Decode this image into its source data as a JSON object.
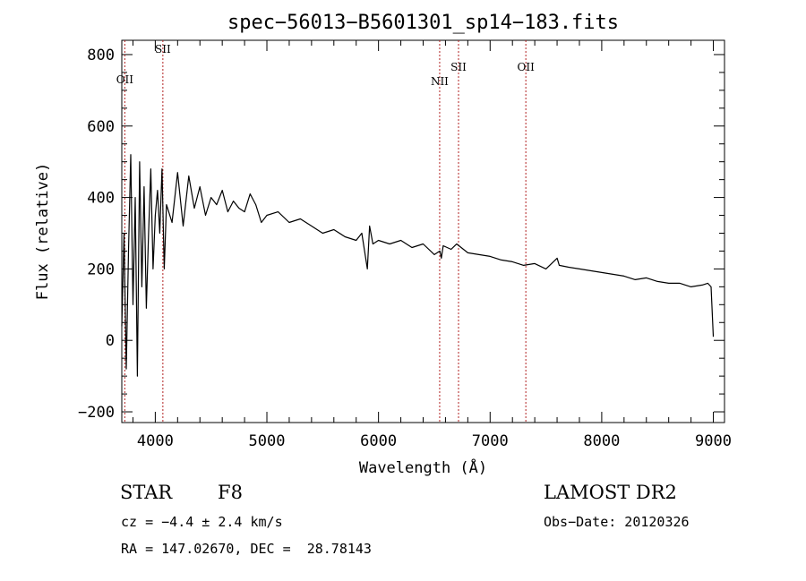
{
  "chart_data": {
    "type": "line",
    "title": "spec−56013−B5601301_sp14−183.fits",
    "xlabel": "Wavelength (Å)",
    "ylabel": "Flux (relative)",
    "xlim": [
      3700,
      9100
    ],
    "ylim": [
      -230,
      840
    ],
    "x_ticks": [
      4000,
      5000,
      6000,
      7000,
      8000,
      9000
    ],
    "y_ticks": [
      -200,
      0,
      200,
      400,
      600,
      800
    ],
    "y_tick_labels": [
      "−200",
      "0",
      "200",
      "400",
      "600",
      "800"
    ],
    "grid": false,
    "series": [
      {
        "x": [
          3700,
          3720,
          3740,
          3760,
          3780,
          3800,
          3820,
          3840,
          3860,
          3880,
          3900,
          3920,
          3940,
          3960,
          3980,
          4000,
          4020,
          4040,
          4060,
          4080,
          4100,
          4150,
          4200,
          4250,
          4300,
          4350,
          4400,
          4450,
          4500,
          4550,
          4600,
          4650,
          4700,
          4750,
          4800,
          4850,
          4900,
          4950,
          5000,
          5100,
          5200,
          5300,
          5400,
          5500,
          5600,
          5700,
          5800,
          5850,
          5900,
          5920,
          5950,
          6000,
          6100,
          6200,
          6300,
          6400,
          6500,
          6550,
          6563,
          6580,
          6650,
          6700,
          6800,
          6900,
          7000,
          7100,
          7200,
          7300,
          7400,
          7500,
          7600,
          7620,
          7700,
          7800,
          7900,
          8000,
          8100,
          8200,
          8300,
          8400,
          8500,
          8600,
          8700,
          8800,
          8900,
          8950,
          8980,
          9000
        ],
        "y": [
          40,
          300,
          -80,
          250,
          520,
          100,
          400,
          -100,
          500,
          150,
          430,
          90,
          300,
          480,
          200,
          350,
          420,
          300,
          480,
          200,
          380,
          330,
          470,
          320,
          460,
          370,
          430,
          350,
          400,
          380,
          420,
          360,
          390,
          370,
          360,
          410,
          380,
          330,
          350,
          360,
          330,
          340,
          320,
          300,
          310,
          290,
          280,
          300,
          200,
          320,
          270,
          280,
          270,
          280,
          260,
          270,
          240,
          250,
          230,
          265,
          255,
          270,
          245,
          240,
          235,
          225,
          220,
          210,
          215,
          200,
          230,
          210,
          205,
          200,
          195,
          190,
          185,
          180,
          170,
          175,
          165,
          160,
          160,
          150,
          155,
          160,
          150,
          10
        ]
      }
    ],
    "emission_lines": [
      {
        "label": "OII",
        "x": 3727,
        "label_y": 720
      },
      {
        "label": "SII",
        "x": 4068,
        "label_y": 805
      },
      {
        "label": "NII",
        "x": 6548,
        "label_y": 715
      },
      {
        "label": "SII",
        "x": 6717,
        "label_y": 755
      },
      {
        "label": "OII",
        "x": 7320,
        "label_y": 755
      }
    ],
    "colors": {
      "line": "#000000",
      "marker_line": "#b22222"
    }
  },
  "info": {
    "object_class": "STAR",
    "subclass": "F8",
    "survey": "LAMOST DR2",
    "cz": "cz = −4.4 ± 2.4 km/s",
    "obs_date": "Obs−Date: 20120326",
    "coords": "RA = 147.02670, DEC =  28.78143"
  }
}
